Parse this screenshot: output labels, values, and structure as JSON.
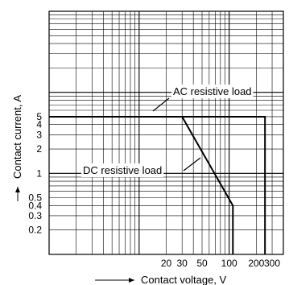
{
  "chart_data": {
    "type": "line",
    "title": "",
    "xlabel": "Contact voltage, V",
    "ylabel": "Contact current, A",
    "x_scale": "log",
    "y_scale": "log",
    "xlim": [
      1,
      400
    ],
    "ylim": [
      0.1,
      100
    ],
    "x_ticks": [
      {
        "value": 20,
        "label": "20"
      },
      {
        "value": 30,
        "label": "30"
      },
      {
        "value": 50,
        "label": "50"
      },
      {
        "value": 100,
        "label": "100"
      },
      {
        "value": 200,
        "label": "200"
      },
      {
        "value": 300,
        "label": "300"
      }
    ],
    "y_ticks": [
      {
        "value": 5,
        "label": "5"
      },
      {
        "value": 4,
        "label": "4"
      },
      {
        "value": 3,
        "label": "3"
      },
      {
        "value": 2,
        "label": "2"
      },
      {
        "value": 1,
        "label": "1"
      },
      {
        "value": 0.5,
        "label": "0.5"
      },
      {
        "value": 0.4,
        "label": "0.4"
      },
      {
        "value": 0.3,
        "label": "0.3"
      },
      {
        "value": 0.2,
        "label": "0.2"
      }
    ],
    "grid": true,
    "series": [
      {
        "name": "AC resistive load",
        "x": [
          1,
          250,
          250
        ],
        "y": [
          5,
          5,
          0.1
        ],
        "color": "#000000"
      },
      {
        "name": "DC resistive load",
        "x": [
          1,
          30,
          110,
          110
        ],
        "y": [
          5,
          5,
          0.4,
          0.1
        ],
        "color": "#000000"
      }
    ],
    "annotations": [
      {
        "text": "AC resistive load",
        "target_series": 0
      },
      {
        "text": "DC resistive load",
        "target_series": 1
      }
    ]
  }
}
